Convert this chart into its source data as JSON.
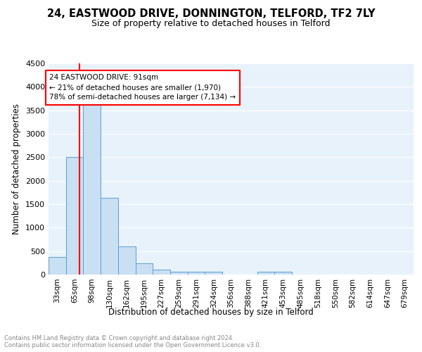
{
  "title": "24, EASTWOOD DRIVE, DONNINGTON, TELFORD, TF2 7LY",
  "subtitle": "Size of property relative to detached houses in Telford",
  "xlabel": "Distribution of detached houses by size in Telford",
  "ylabel": "Number of detached properties",
  "bins": [
    "33sqm",
    "65sqm",
    "98sqm",
    "130sqm",
    "162sqm",
    "195sqm",
    "227sqm",
    "259sqm",
    "291sqm",
    "324sqm",
    "356sqm",
    "388sqm",
    "421sqm",
    "453sqm",
    "485sqm",
    "518sqm",
    "550sqm",
    "582sqm",
    "614sqm",
    "647sqm",
    "679sqm"
  ],
  "values": [
    370,
    2500,
    3700,
    1640,
    600,
    240,
    110,
    65,
    55,
    55,
    0,
    0,
    60,
    55,
    0,
    0,
    0,
    0,
    0,
    0,
    0
  ],
  "bar_color": "#c9dff2",
  "bar_edge_color": "#5a9fd4",
  "annotation_text": "24 EASTWOOD DRIVE: 91sqm\n← 21% of detached houses are smaller (1,970)\n78% of semi-detached houses are larger (7,134) →",
  "annotation_box_color": "white",
  "annotation_box_edge_color": "red",
  "red_line_color": "red",
  "ylim": [
    0,
    4500
  ],
  "yticks": [
    0,
    500,
    1000,
    1500,
    2000,
    2500,
    3000,
    3500,
    4000,
    4500
  ],
  "background_color": "#e8f2fb",
  "footer_text": "Contains HM Land Registry data © Crown copyright and database right 2024.\nContains public sector information licensed under the Open Government Licence v3.0.",
  "title_fontsize": 10.5,
  "subtitle_fontsize": 9,
  "xlabel_fontsize": 8.5,
  "ylabel_fontsize": 8.5,
  "annotation_fontsize": 7.5,
  "tick_fontsize": 7.5,
  "ytick_fontsize": 8
}
